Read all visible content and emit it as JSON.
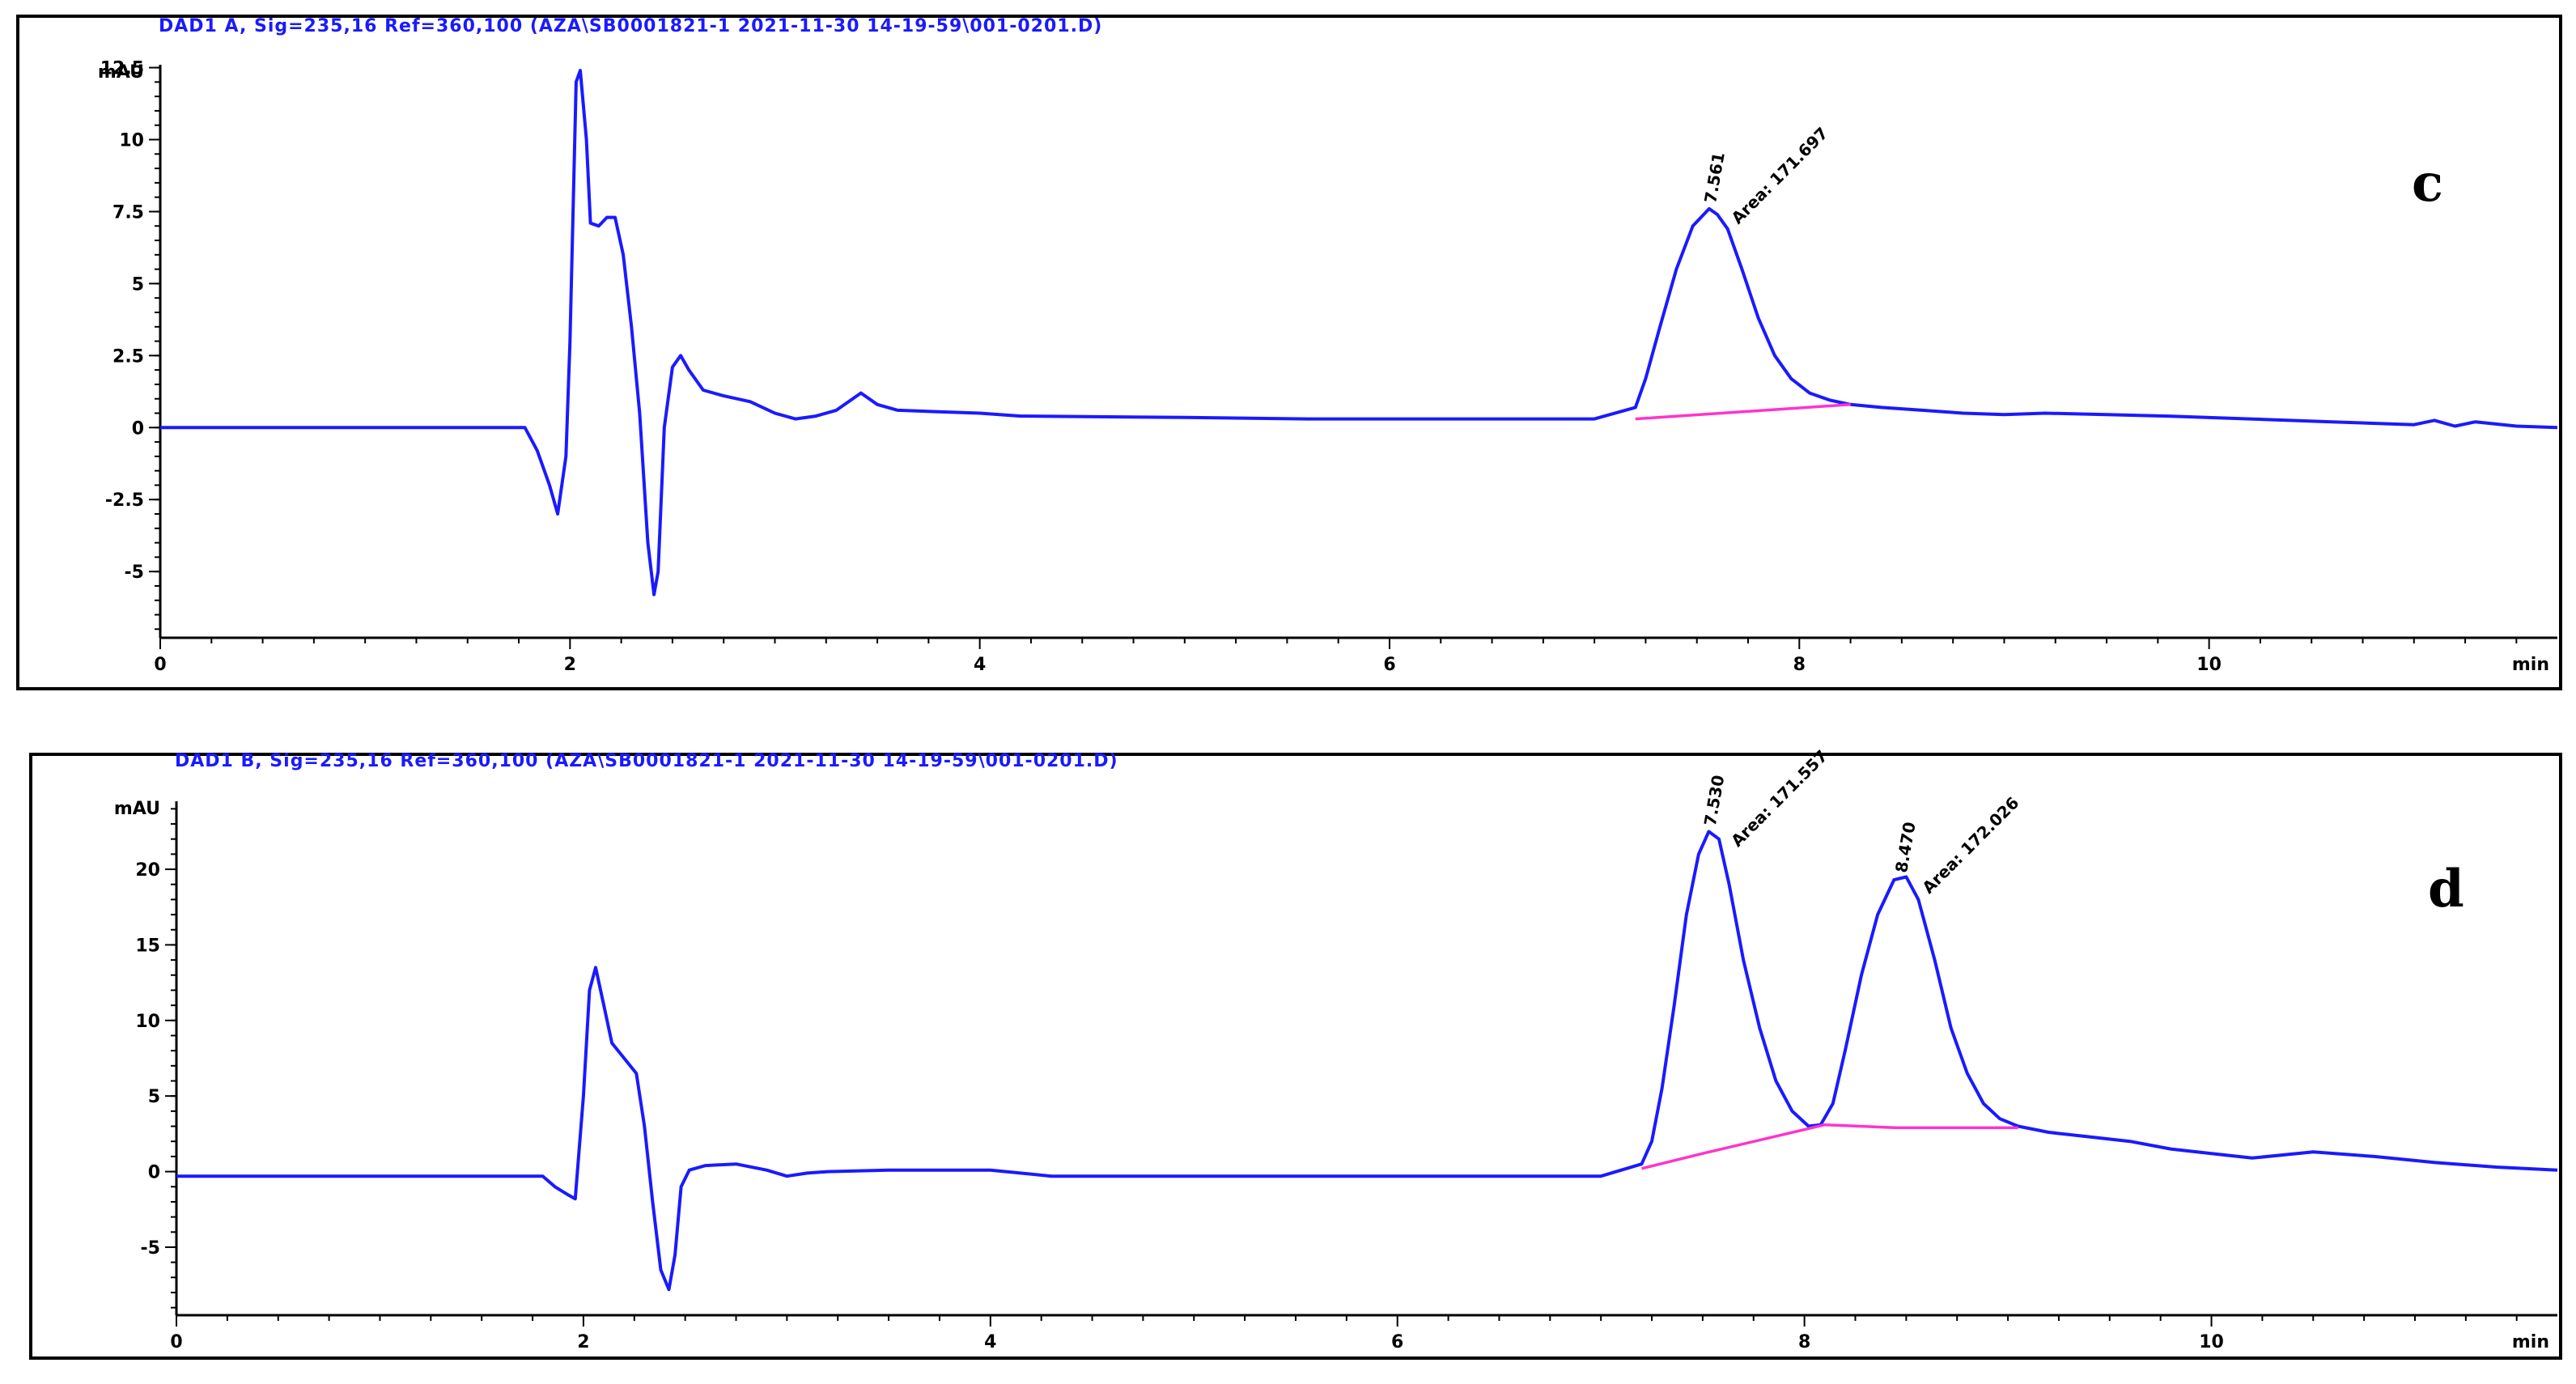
{
  "chart_data": [
    {
      "type": "line",
      "panel_label": "c",
      "header": "DAD1 A, Sig=235,16 Ref=360,100 (AZA\\SB0001821-1 2021-11-30 14-19-59\\001-0201.D)",
      "ylabel": "mAU",
      "xlabel": "min",
      "xlim": [
        0,
        11.7
      ],
      "ylim": [
        -7.3,
        12.6
      ],
      "xticks": [
        0,
        2,
        4,
        6,
        8,
        10
      ],
      "xtick_labels": [
        "0",
        "2",
        "4",
        "6",
        "8",
        "10"
      ],
      "yticks": [
        -5,
        -2.5,
        0,
        2.5,
        5,
        7.5,
        10,
        12.5
      ],
      "ytick_labels": [
        "-5",
        "-2.5",
        "0",
        "2.5",
        "5",
        "7.5",
        "10",
        "12.5"
      ],
      "series": [
        {
          "color": "#1a1aff",
          "x": [
            0,
            1.78,
            1.84,
            1.9,
            1.94,
            1.98,
            2.0,
            2.03,
            2.05,
            2.08,
            2.1,
            2.14,
            2.18,
            2.22,
            2.26,
            2.3,
            2.34,
            2.38,
            2.41,
            2.43,
            2.46,
            2.5,
            2.54,
            2.58,
            2.65,
            2.75,
            2.88,
            3.0,
            3.1,
            3.2,
            3.3,
            3.42,
            3.5,
            3.6,
            3.8,
            4.0,
            4.2,
            5.0,
            5.6,
            7.0,
            7.2,
            7.25,
            7.32,
            7.4,
            7.48,
            7.56,
            7.6,
            7.65,
            7.72,
            7.8,
            7.88,
            7.96,
            8.05,
            8.15,
            8.25,
            8.4,
            8.6,
            8.8,
            9.0,
            9.2,
            9.5,
            9.8,
            10.2,
            10.6,
            11.0,
            11.1,
            11.2,
            11.3,
            11.5,
            11.7
          ],
          "y": [
            0,
            0,
            -0.8,
            -2,
            -3.0,
            -1.0,
            3.0,
            12.0,
            12.4,
            10.0,
            7.1,
            7.0,
            7.3,
            7.3,
            6.0,
            3.5,
            0.5,
            -4.0,
            -5.8,
            -5.0,
            0,
            2.1,
            2.5,
            2.0,
            1.3,
            1.1,
            0.9,
            0.5,
            0.3,
            0.4,
            0.6,
            1.2,
            0.8,
            0.6,
            0.55,
            0.5,
            0.4,
            0.35,
            0.3,
            0.3,
            0.7,
            1.7,
            3.5,
            5.5,
            7.0,
            7.6,
            7.4,
            6.9,
            5.5,
            3.8,
            2.5,
            1.7,
            1.2,
            0.95,
            0.8,
            0.7,
            0.6,
            0.5,
            0.45,
            0.5,
            0.45,
            0.4,
            0.3,
            0.2,
            0.1,
            0.25,
            0.05,
            0.2,
            0.05,
            0
          ]
        },
        {
          "color": "#ff33cc",
          "x": [
            7.2,
            8.25
          ],
          "y": [
            0.3,
            0.8
          ]
        }
      ],
      "annotations": [
        {
          "x": 7.56,
          "text": "7.561"
        },
        {
          "x": 7.56,
          "text": "Area: 171.697"
        }
      ]
    },
    {
      "type": "line",
      "panel_label": "d",
      "header": "DAD1 B, Sig=235,16 Ref=360,100 (AZA\\SB0001821-1 2021-11-30 14-19-59\\001-0201.D)",
      "ylabel": "mAU",
      "xlabel": "min",
      "xlim": [
        0,
        11.7
      ],
      "ylim": [
        -9.5,
        24.5
      ],
      "xticks": [
        0,
        2,
        4,
        6,
        8,
        10
      ],
      "xtick_labels": [
        "0",
        "2",
        "4",
        "6",
        "8",
        "10"
      ],
      "yticks": [
        -5,
        0,
        5,
        10,
        15,
        20
      ],
      "ytick_labels": [
        "-5",
        "0",
        "5",
        "10",
        "15",
        "20"
      ],
      "series": [
        {
          "color": "#1a1aff",
          "x": [
            0,
            1.8,
            1.86,
            1.92,
            1.96,
            2.0,
            2.03,
            2.06,
            2.1,
            2.14,
            2.2,
            2.26,
            2.3,
            2.34,
            2.38,
            2.42,
            2.45,
            2.48,
            2.52,
            2.6,
            2.75,
            2.9,
            3.0,
            3.1,
            3.2,
            3.5,
            4.0,
            4.3,
            5.0,
            6.0,
            7.0,
            7.2,
            7.25,
            7.3,
            7.36,
            7.42,
            7.48,
            7.53,
            7.58,
            7.63,
            7.7,
            7.78,
            7.86,
            7.94,
            8.02,
            8.08,
            8.14,
            8.2,
            8.28,
            8.36,
            8.44,
            8.5,
            8.56,
            8.64,
            8.72,
            8.8,
            8.88,
            8.96,
            9.05,
            9.2,
            9.4,
            9.6,
            9.8,
            10.0,
            10.2,
            10.5,
            10.8,
            11.1,
            11.4,
            11.7
          ],
          "y": [
            -0.3,
            -0.3,
            -1.0,
            -1.5,
            -1.8,
            5.0,
            12.0,
            13.5,
            11.0,
            8.5,
            7.5,
            6.5,
            3.0,
            -2.0,
            -6.5,
            -7.8,
            -5.5,
            -1.0,
            0.1,
            0.4,
            0.5,
            0.1,
            -0.3,
            -0.1,
            0.0,
            0.1,
            0.1,
            -0.3,
            -0.3,
            -0.3,
            -0.3,
            0.5,
            2.0,
            5.5,
            11.0,
            17.0,
            21.0,
            22.5,
            22.0,
            19.0,
            14.0,
            9.5,
            6.0,
            4.0,
            3.0,
            3.1,
            4.5,
            8.0,
            13.0,
            17.0,
            19.3,
            19.5,
            18.0,
            14.0,
            9.5,
            6.5,
            4.5,
            3.5,
            3.0,
            2.6,
            2.3,
            2.0,
            1.5,
            1.2,
            0.9,
            1.3,
            1.0,
            0.6,
            0.3,
            0.1
          ]
        },
        {
          "color": "#ff33cc",
          "x": [
            7.2,
            7.5,
            8.1,
            8.45,
            9.05
          ],
          "y": [
            0.2,
            1.2,
            3.1,
            2.9,
            2.9
          ]
        }
      ],
      "annotations": [
        {
          "x": 7.53,
          "text": "7.530"
        },
        {
          "x": 7.53,
          "text": "Area: 171.557"
        },
        {
          "x": 8.47,
          "text": "8.470"
        },
        {
          "x": 8.47,
          "text": "Area: 172.026"
        }
      ]
    }
  ]
}
